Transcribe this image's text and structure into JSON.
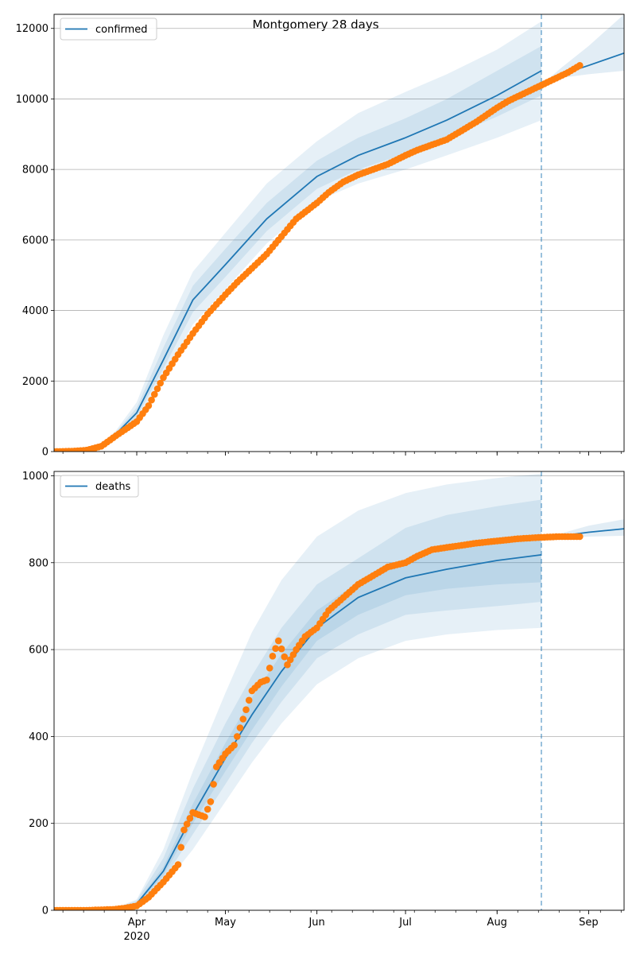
{
  "figure_title": "Montgomery 28 days",
  "colors": {
    "model": "#1f77b4",
    "observed": "#ff7f0e",
    "band": "#1f77b4",
    "grid": "#b0b0b0",
    "forecast_line": "#1f77b4"
  },
  "x_axis": {
    "tick_labels": [
      "Apr",
      "May",
      "Jun",
      "Jul",
      "Aug",
      "Sep"
    ],
    "tick_dates": [
      "2020-04-01",
      "2020-05-01",
      "2020-06-01",
      "2020-07-01",
      "2020-08-01",
      "2020-09-01"
    ],
    "year_label": "2020",
    "range": [
      "2020-03-04",
      "2020-09-13"
    ],
    "forecast_start": "2020-08-16"
  },
  "chart_data": [
    {
      "type": "line",
      "legend": "confirmed",
      "legend_position": "upper-left",
      "grid": "horizontal",
      "ylim": [
        0,
        12400
      ],
      "yticks": [
        "0",
        "2000",
        "4000",
        "6000",
        "8000",
        "10000",
        "12000"
      ],
      "model_fit": {
        "name": "confirmed",
        "x": [
          "2020-03-04",
          "2020-03-20",
          "2020-03-25",
          "2020-04-01",
          "2020-04-10",
          "2020-04-20",
          "2020-05-01",
          "2020-05-15",
          "2020-06-01",
          "2020-06-15",
          "2020-07-01",
          "2020-07-15",
          "2020-08-01",
          "2020-08-16"
        ],
        "y": [
          0,
          150,
          500,
          1100,
          2600,
          4300,
          5300,
          6600,
          7800,
          8400,
          8900,
          9400,
          10100,
          10800
        ],
        "bands": [
          {
            "lower": [
              0,
              120,
              380,
              900,
              2100,
              3600,
              4600,
              5900,
              7100,
              7600,
              8000,
              8400,
              8900,
              9400
            ],
            "upper": [
              0,
              190,
              600,
              1400,
              3300,
              5100,
              6200,
              7600,
              8800,
              9600,
              10200,
              10700,
              11400,
              12200
            ]
          },
          {
            "lower": [
              0,
              135,
              430,
              980,
              2350,
              3950,
              4950,
              6250,
              7450,
              8000,
              8450,
              8900,
              9500,
              10100
            ],
            "upper": [
              0,
              170,
              560,
              1250,
              2950,
              4700,
              5750,
              7050,
              8250,
              8900,
              9450,
              10000,
              10800,
              11500
            ]
          }
        ]
      },
      "forecast": {
        "x": [
          "2020-08-16",
          "2020-08-23",
          "2020-09-01",
          "2020-09-13"
        ],
        "y": [
          10400,
          10700,
          10950,
          11300
        ],
        "upper": [
          10400,
          10900,
          11500,
          12400
        ],
        "lower": [
          10400,
          10600,
          10700,
          10800
        ]
      },
      "observed": {
        "x": [
          "2020-03-04",
          "2020-03-10",
          "2020-03-15",
          "2020-03-20",
          "2020-03-25",
          "2020-04-01",
          "2020-04-05",
          "2020-04-10",
          "2020-04-15",
          "2020-04-20",
          "2020-04-25",
          "2020-05-01",
          "2020-05-05",
          "2020-05-10",
          "2020-05-15",
          "2020-05-20",
          "2020-05-25",
          "2020-06-01",
          "2020-06-05",
          "2020-06-10",
          "2020-06-15",
          "2020-06-20",
          "2020-06-25",
          "2020-07-01",
          "2020-07-05",
          "2020-07-10",
          "2020-07-15",
          "2020-07-20",
          "2020-07-25",
          "2020-08-01",
          "2020-08-05",
          "2020-08-10",
          "2020-08-15",
          "2020-08-20",
          "2020-08-25",
          "2020-08-29"
        ],
        "y": [
          0,
          10,
          40,
          150,
          450,
          850,
          1300,
          2100,
          2750,
          3350,
          3900,
          4450,
          4800,
          5200,
          5600,
          6100,
          6600,
          7050,
          7350,
          7650,
          7850,
          8000,
          8150,
          8400,
          8550,
          8700,
          8850,
          9100,
          9350,
          9750,
          9950,
          10150,
          10350,
          10550,
          10750,
          10950
        ]
      }
    },
    {
      "type": "line",
      "legend": "deaths",
      "legend_position": "upper-left",
      "grid": "horizontal",
      "ylim": [
        0,
        1010
      ],
      "yticks": [
        "0",
        "200",
        "400",
        "600",
        "800",
        "1000"
      ],
      "model_fit": {
        "name": "deaths",
        "x": [
          "2020-03-04",
          "2020-03-25",
          "2020-04-01",
          "2020-04-10",
          "2020-04-20",
          "2020-05-01",
          "2020-05-10",
          "2020-05-20",
          "2020-06-01",
          "2020-06-15",
          "2020-07-01",
          "2020-07-15",
          "2020-08-01",
          "2020-08-16"
        ],
        "y": [
          0,
          3,
          15,
          90,
          220,
          350,
          450,
          550,
          650,
          720,
          765,
          785,
          805,
          818
        ],
        "bands": [
          {
            "lower": [
              0,
              1,
              8,
              55,
              140,
              250,
              340,
              430,
              520,
              580,
              620,
              635,
              645,
              650
            ],
            "upper": [
              0,
              6,
              25,
              140,
              320,
              500,
              640,
              760,
              860,
              920,
              960,
              980,
              995,
              1005
            ]
          },
          {
            "lower": [
              0,
              2,
              10,
              70,
              175,
              290,
              385,
              480,
              580,
              635,
              680,
              690,
              700,
              710
            ],
            "upper": [
              0,
              5,
              22,
              120,
              280,
              430,
              540,
              650,
              750,
              810,
              880,
              910,
              930,
              945
            ]
          },
          {
            "lower": [
              0,
              2,
              12,
              80,
              200,
              320,
              415,
              515,
              620,
              680,
              725,
              740,
              750,
              755
            ],
            "upper": [
              0,
              4,
              18,
              100,
              245,
              385,
              490,
              590,
              690,
              755,
              805,
              830,
              850,
              860
            ]
          }
        ]
      },
      "forecast": {
        "x": [
          "2020-08-16",
          "2020-08-23",
          "2020-09-01",
          "2020-09-13"
        ],
        "y": [
          858,
          862,
          870,
          878
        ],
        "upper": [
          860,
          868,
          885,
          900
        ],
        "lower": [
          858,
          858,
          860,
          862
        ]
      },
      "observed": {
        "x": [
          "2020-03-04",
          "2020-03-15",
          "2020-03-24",
          "2020-03-28",
          "2020-04-01",
          "2020-04-05",
          "2020-04-10",
          "2020-04-15",
          "2020-04-17",
          "2020-04-20",
          "2020-04-24",
          "2020-04-26",
          "2020-04-28",
          "2020-05-01",
          "2020-05-04",
          "2020-05-07",
          "2020-05-10",
          "2020-05-13",
          "2020-05-15",
          "2020-05-17",
          "2020-05-19",
          "2020-05-22",
          "2020-05-25",
          "2020-05-28",
          "2020-06-01",
          "2020-06-05",
          "2020-06-10",
          "2020-06-15",
          "2020-06-20",
          "2020-06-25",
          "2020-07-01",
          "2020-07-05",
          "2020-07-10",
          "2020-07-15",
          "2020-07-20",
          "2020-07-25",
          "2020-08-01",
          "2020-08-08",
          "2020-08-15",
          "2020-08-22",
          "2020-08-29"
        ],
        "y": [
          0,
          0,
          2,
          5,
          10,
          30,
          65,
          105,
          185,
          225,
          215,
          250,
          330,
          360,
          380,
          440,
          505,
          525,
          530,
          585,
          620,
          565,
          600,
          630,
          650,
          690,
          720,
          750,
          770,
          790,
          800,
          815,
          830,
          835,
          840,
          845,
          850,
          855,
          858,
          860,
          860
        ]
      }
    }
  ]
}
